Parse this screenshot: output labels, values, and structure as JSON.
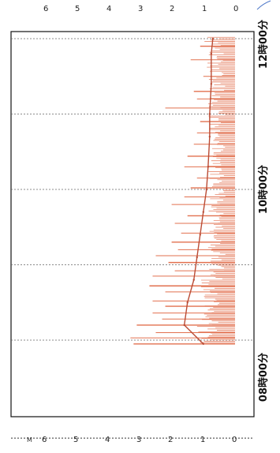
{
  "chart_data": {
    "type": "bar",
    "orientation": "rotated-90-clockwise",
    "value_axis": {
      "ticks": [
        0,
        1,
        2,
        3,
        4,
        5,
        6
      ],
      "ylim": [
        0,
        6.6
      ],
      "extra_label": "M"
    },
    "time_axis": {
      "labels": [
        "08時00分",
        "10時00分",
        "12時00分"
      ],
      "label_hours": [
        8,
        10,
        12
      ],
      "range_hours": [
        6.7,
        12.05
      ],
      "gridline_hours": [
        6.7,
        8.0,
        9.0,
        10.0,
        11.0,
        12.0
      ]
    },
    "series_color": "#e2704f",
    "spikes": [
      {
        "t": 7.95,
        "v": 3.2
      },
      {
        "t": 8.03,
        "v": 3.3
      },
      {
        "t": 8.1,
        "v": 2.5
      },
      {
        "t": 8.2,
        "v": 3.1
      },
      {
        "t": 8.28,
        "v": 2.3
      },
      {
        "t": 8.36,
        "v": 2.6
      },
      {
        "t": 8.45,
        "v": 2.2
      },
      {
        "t": 8.52,
        "v": 2.6
      },
      {
        "t": 8.64,
        "v": 2.2
      },
      {
        "t": 8.72,
        "v": 2.7
      },
      {
        "t": 8.85,
        "v": 2.6
      },
      {
        "t": 8.92,
        "v": 1.9
      },
      {
        "t": 9.03,
        "v": 2.1
      },
      {
        "t": 9.12,
        "v": 2.5
      },
      {
        "t": 9.2,
        "v": 1.8
      },
      {
        "t": 9.3,
        "v": 2.0
      },
      {
        "t": 9.42,
        "v": 1.7
      },
      {
        "t": 9.55,
        "v": 1.9
      },
      {
        "t": 9.65,
        "v": 1.5
      },
      {
        "t": 9.8,
        "v": 2.0
      },
      {
        "t": 9.9,
        "v": 1.6
      },
      {
        "t": 10.02,
        "v": 1.4
      },
      {
        "t": 10.15,
        "v": 1.2
      },
      {
        "t": 10.3,
        "v": 1.6
      },
      {
        "t": 10.44,
        "v": 1.5
      },
      {
        "t": 10.6,
        "v": 1.3
      },
      {
        "t": 10.75,
        "v": 1.2
      },
      {
        "t": 10.9,
        "v": 1.1
      },
      {
        "t": 11.08,
        "v": 2.2
      },
      {
        "t": 11.2,
        "v": 1.2
      },
      {
        "t": 11.3,
        "v": 1.3
      },
      {
        "t": 11.5,
        "v": 1.0
      },
      {
        "t": 11.72,
        "v": 1.4
      },
      {
        "t": 11.9,
        "v": 1.1
      }
    ],
    "envelope": [
      {
        "t": 7.95,
        "v": 1.0
      },
      {
        "t": 8.2,
        "v": 1.6
      },
      {
        "t": 8.5,
        "v": 1.5
      },
      {
        "t": 8.8,
        "v": 1.3
      },
      {
        "t": 9.1,
        "v": 1.2
      },
      {
        "t": 9.4,
        "v": 1.1
      },
      {
        "t": 9.7,
        "v": 1.0
      },
      {
        "t": 10.0,
        "v": 0.9
      },
      {
        "t": 10.3,
        "v": 0.85
      },
      {
        "t": 10.7,
        "v": 0.8
      },
      {
        "t": 11.0,
        "v": 0.8
      },
      {
        "t": 11.4,
        "v": 0.75
      },
      {
        "t": 11.8,
        "v": 0.75
      },
      {
        "t": 12.0,
        "v": 0.7
      }
    ]
  }
}
